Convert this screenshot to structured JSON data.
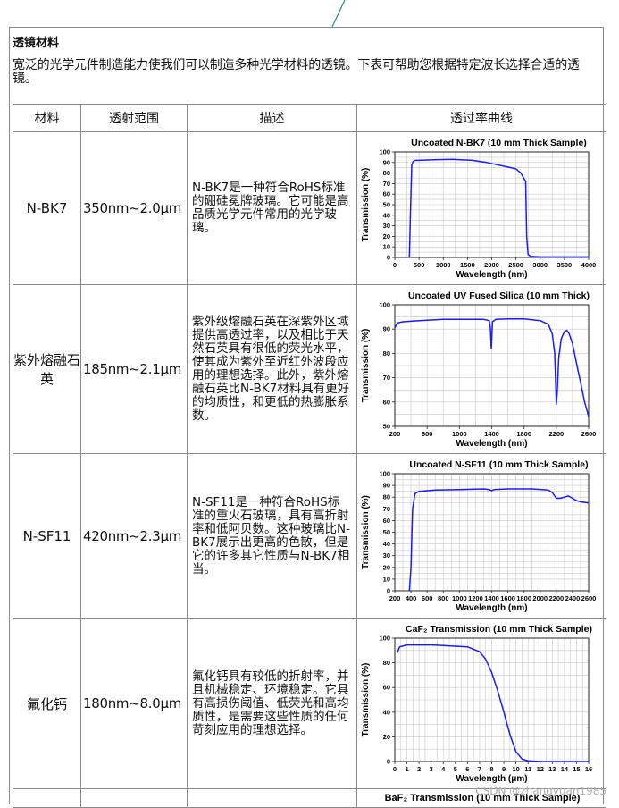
{
  "heading": "透镜材料",
  "intro": "宽泛的光学元件制造能力使我们可以制造多种光学材料的透镜。下表可帮助您根据特定波长选择合适的透镜。",
  "table": {
    "headers": [
      "材料",
      "透射范围",
      "描述",
      "透过率曲线"
    ],
    "rows": [
      {
        "material": "N-BK7",
        "range": "350nm~2.0μm",
        "description": "N-BK7是一种符合RoHS标准的硼硅冕牌玻璃。它可能是高品质光学元件常用的光学玻璃。"
      },
      {
        "material": "紫外熔融石英",
        "range": "185nm~2.1μm",
        "description": "紫外级熔融石英在深紫外区域提供高透过率，以及相比于天然石英具有很低的荧光水平，使其成为紫外至近红外波段应用的理想选择。此外，紫外熔融石英比N-BK7材料具有更好的均质性，和更低的热膨胀系数。"
      },
      {
        "material": "N-SF11",
        "range": "420nm~2.3μm",
        "description": "N-SF11是一种符合RoHS标准的重火石玻璃，具有高折射率和低阿贝数。这种玻璃比N-BK7展示出更高的色散，但是它的许多其它性质与N-BK7相当。"
      },
      {
        "material": "氟化钙",
        "range": "180nm~8.0μm",
        "description": "氟化钙具有较低的折射率，并且机械稳定、环境稳定。它具有高损伤阈值、低荧光和高均质性，是需要这些性质的任何苛刻应用的理想选择。"
      }
    ],
    "partial_chart_title": "BaF₂ Transmission (10 mm Thick Sample)"
  },
  "watermark": "CSDN @zhangyuan1985",
  "chart_data": [
    {
      "type": "line",
      "title": "Uncoated N-BK7 (10 mm Thick Sample)",
      "xlabel": "Wavelength (nm)",
      "ylabel": "Transmission (%)",
      "xlim": [
        0,
        4000
      ],
      "ylim": [
        0,
        100
      ],
      "xticks": [
        0,
        500,
        1000,
        1500,
        2000,
        2500,
        3000,
        3500,
        4000
      ],
      "yticks": [
        0,
        10,
        20,
        30,
        40,
        50,
        60,
        70,
        80,
        90,
        100
      ],
      "grid": true,
      "color": "#1a1aff",
      "x": [
        300,
        330,
        350,
        380,
        420,
        500,
        800,
        1200,
        1600,
        1900,
        2100,
        2300,
        2500,
        2600,
        2700,
        2720,
        2750,
        2800,
        3000,
        3500,
        4000
      ],
      "y": [
        0,
        55,
        88,
        91,
        92,
        92,
        92.5,
        93,
        92,
        90,
        88,
        86,
        84,
        80,
        72,
        20,
        3,
        1,
        0.5,
        0.5,
        0.5
      ]
    },
    {
      "type": "line",
      "title": "Uncoated UV Fused Silica (10 mm Thick)",
      "xlabel": "Wavelength (nm)",
      "ylabel": "Transmission (%)",
      "xlim": [
        200,
        2600
      ],
      "ylim": [
        50,
        100
      ],
      "xticks": [
        200,
        600,
        1000,
        1400,
        1800,
        2200,
        2600
      ],
      "yticks": [
        50,
        60,
        70,
        80,
        90,
        100
      ],
      "grid": true,
      "color": "#1a1aff",
      "x": [
        200,
        230,
        300,
        500,
        800,
        1100,
        1300,
        1370,
        1385,
        1395,
        1410,
        1450,
        1600,
        1800,
        2000,
        2100,
        2150,
        2180,
        2200,
        2210,
        2230,
        2260,
        2300,
        2330,
        2360,
        2400,
        2450,
        2500,
        2550,
        2600
      ],
      "y": [
        90.5,
        92.5,
        93,
        93.5,
        94,
        94,
        94,
        93.5,
        90,
        82,
        93,
        94,
        94.2,
        94.2,
        93.5,
        92,
        88,
        80,
        59,
        63,
        78,
        86,
        89,
        89.5,
        88,
        84,
        76,
        68,
        60,
        54
      ]
    },
    {
      "type": "line",
      "title": "Uncoated N-SF11 (10 mm Thick Sample)",
      "xlabel": "Wavelength (nm)",
      "ylabel": "Transmission (%)",
      "xlim": [
        200,
        2600
      ],
      "ylim": [
        0,
        100
      ],
      "xticks": [
        200,
        400,
        600,
        800,
        1000,
        1200,
        1400,
        1600,
        1800,
        2000,
        2200,
        2400,
        2600
      ],
      "yticks": [
        0,
        10,
        20,
        30,
        40,
        50,
        60,
        70,
        80,
        90,
        100
      ],
      "grid": true,
      "color": "#1a1aff",
      "x": [
        380,
        400,
        420,
        450,
        500,
        700,
        1000,
        1300,
        1370,
        1400,
        1430,
        1600,
        1900,
        2100,
        2150,
        2200,
        2250,
        2300,
        2350,
        2400,
        2450,
        2500,
        2600
      ],
      "y": [
        0,
        20,
        70,
        83,
        85,
        86,
        86.5,
        87,
        86.5,
        85.5,
        86.5,
        87,
        87,
        86,
        84,
        79,
        79,
        80,
        81,
        79,
        77,
        76,
        75
      ]
    },
    {
      "type": "line",
      "title": "CaF₂ Transmission (10 mm Thick Sample)",
      "xlabel": "Wavelength (μm)",
      "ylabel": "Transmission (%)",
      "xlim": [
        0,
        16
      ],
      "ylim": [
        0,
        100
      ],
      "xticks": [
        0,
        1,
        2,
        3,
        4,
        5,
        6,
        7,
        8,
        9,
        10,
        11,
        12,
        13,
        14,
        15,
        16
      ],
      "yticks": [
        0,
        20,
        40,
        60,
        80,
        100
      ],
      "grid": true,
      "color": "#1a1aff",
      "x": [
        0.2,
        0.4,
        1,
        2,
        3,
        4,
        5,
        6,
        7,
        7.5,
        8,
        8.5,
        9,
        9.5,
        10,
        10.5,
        11,
        12,
        16
      ],
      "y": [
        88,
        93,
        94.5,
        94.5,
        94.5,
        94,
        93.5,
        93,
        89,
        83,
        72,
        57,
        40,
        22,
        8,
        2,
        0.5,
        0,
        0
      ]
    }
  ]
}
